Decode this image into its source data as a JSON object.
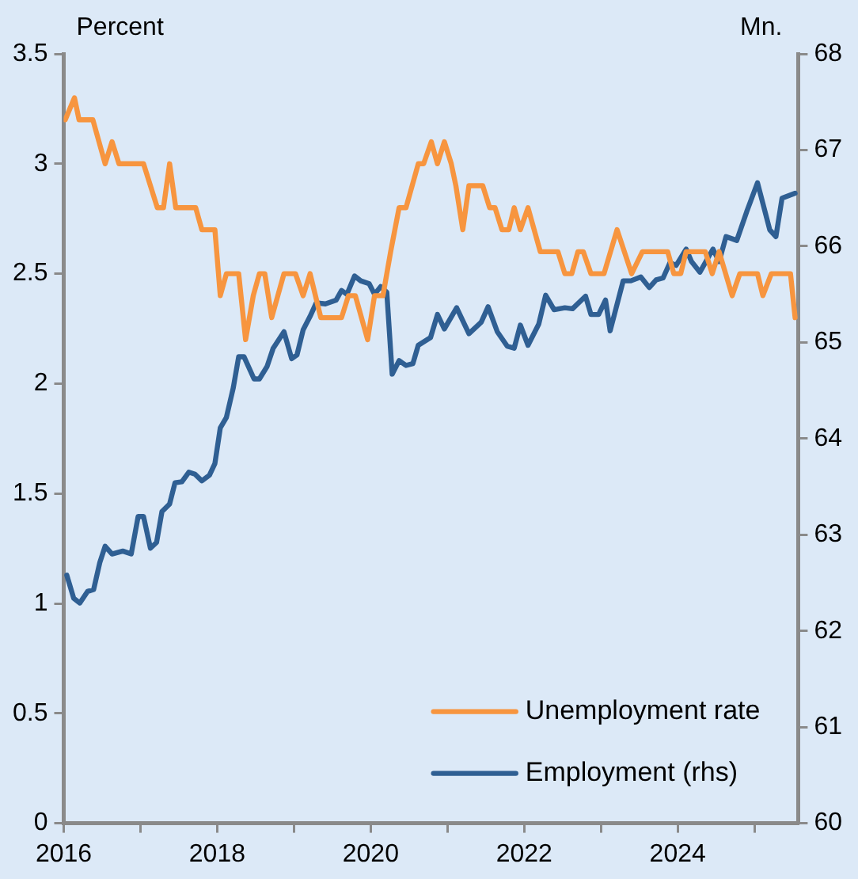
{
  "chart_data": {
    "type": "line",
    "ylabel": "Percent",
    "y2label": "Mn.",
    "legend": "bottom right",
    "xlim": [
      2016,
      2025.57
    ],
    "xticks": [
      2016,
      {
        "value": 2017,
        "label": null
      },
      2018,
      {
        "value": 2019,
        "label": null
      },
      2020,
      {
        "value": 2021,
        "label": null
      },
      2022,
      {
        "value": 2023,
        "label": null
      },
      2024,
      {
        "value": 2025,
        "label": null
      }
    ],
    "ylim": [
      0,
      3.5
    ],
    "yticks": [
      0,
      0.5,
      1,
      1.5,
      2,
      2.5,
      3,
      3.5
    ],
    "y2lim": [
      60,
      68
    ],
    "y2ticks": [
      60,
      61,
      62,
      63,
      64,
      65,
      66,
      67,
      68
    ],
    "series": [
      {
        "name": "Unemployment rate",
        "color": "#f7953f",
        "x": [
          2016.02,
          2016.14,
          2016.2,
          2016.38,
          2016.54,
          2016.63,
          2016.72,
          2017.04,
          2017.22,
          2017.3,
          2017.38,
          2017.46,
          2017.72,
          2017.8,
          2017.97,
          2018.04,
          2018.12,
          2018.28,
          2018.37,
          2018.47,
          2018.55,
          2018.62,
          2018.71,
          2018.87,
          2019.02,
          2019.12,
          2019.21,
          2019.35,
          2019.62,
          2019.71,
          2019.8,
          2019.96,
          2020.05,
          2020.16,
          2020.26,
          2020.37,
          2020.46,
          2020.62,
          2020.69,
          2020.79,
          2020.87,
          2020.96,
          2021.05,
          2021.11,
          2021.2,
          2021.28,
          2021.46,
          2021.55,
          2021.62,
          2021.71,
          2021.8,
          2021.87,
          2021.95,
          2022.05,
          2022.21,
          2022.44,
          2022.53,
          2022.62,
          2022.7,
          2022.77,
          2022.87,
          2023.04,
          2023.21,
          2023.4,
          2023.54,
          2023.87,
          2023.95,
          2024.04,
          2024.11,
          2024.36,
          2024.45,
          2024.54,
          2024.71,
          2024.81,
          2025.04,
          2025.11,
          2025.22,
          2025.47,
          2025.53
        ],
        "values": [
          3.2,
          3.3,
          3.2,
          3.2,
          3.0,
          3.1,
          3.0,
          3.0,
          2.8,
          2.8,
          3.0,
          2.8,
          2.8,
          2.7,
          2.7,
          2.4,
          2.5,
          2.5,
          2.2,
          2.4,
          2.5,
          2.5,
          2.3,
          2.5,
          2.5,
          2.4,
          2.5,
          2.3,
          2.3,
          2.4,
          2.4,
          2.2,
          2.4,
          2.4,
          2.6,
          2.8,
          2.8,
          3.0,
          3.0,
          3.1,
          3.0,
          3.1,
          3.0,
          2.9,
          2.7,
          2.9,
          2.9,
          2.8,
          2.8,
          2.7,
          2.7,
          2.8,
          2.7,
          2.8,
          2.6,
          2.6,
          2.5,
          2.5,
          2.6,
          2.6,
          2.5,
          2.5,
          2.7,
          2.5,
          2.6,
          2.6,
          2.5,
          2.5,
          2.6,
          2.6,
          2.5,
          2.6,
          2.4,
          2.5,
          2.5,
          2.4,
          2.5,
          2.5,
          2.3
        ]
      },
      {
        "name": "Employment (rhs)",
        "color": "#2f5f93",
        "axis": "y2",
        "x": [
          2016.04,
          2016.13,
          2016.21,
          2016.31,
          2016.39,
          2016.47,
          2016.54,
          2016.63,
          2016.77,
          2016.88,
          2016.97,
          2017.04,
          2017.13,
          2017.21,
          2017.28,
          2017.38,
          2017.45,
          2017.54,
          2017.63,
          2017.71,
          2017.8,
          2017.9,
          2017.97,
          2018.04,
          2018.12,
          2018.21,
          2018.28,
          2018.35,
          2018.48,
          2018.55,
          2018.65,
          2018.73,
          2018.87,
          2018.97,
          2019.04,
          2019.12,
          2019.21,
          2019.29,
          2019.41,
          2019.55,
          2019.62,
          2019.69,
          2019.79,
          2019.87,
          2019.98,
          2020.05,
          2020.13,
          2020.21,
          2020.28,
          2020.37,
          2020.46,
          2020.55,
          2020.62,
          2020.78,
          2020.87,
          2020.96,
          2021.12,
          2021.28,
          2021.44,
          2021.53,
          2021.65,
          2021.78,
          2021.87,
          2021.95,
          2022.05,
          2022.19,
          2022.28,
          2022.39,
          2022.53,
          2022.63,
          2022.8,
          2022.87,
          2022.97,
          2023.06,
          2023.12,
          2023.29,
          2023.39,
          2023.52,
          2023.63,
          2023.72,
          2023.81,
          2023.9,
          2023.98,
          2024.11,
          2024.18,
          2024.29,
          2024.46,
          2024.54,
          2024.63,
          2024.77,
          2024.9,
          2025.04,
          2025.2,
          2025.28,
          2025.36,
          2025.53
        ],
        "values": [
          62.58,
          62.34,
          62.29,
          62.41,
          62.43,
          62.71,
          62.88,
          62.8,
          62.83,
          62.8,
          63.19,
          63.19,
          62.86,
          62.92,
          63.24,
          63.32,
          63.54,
          63.55,
          63.65,
          63.63,
          63.56,
          63.62,
          63.74,
          64.11,
          64.22,
          64.53,
          64.85,
          64.85,
          64.62,
          64.62,
          64.75,
          64.94,
          65.11,
          64.83,
          64.87,
          65.13,
          65.27,
          65.41,
          65.4,
          65.44,
          65.54,
          65.5,
          65.69,
          65.64,
          65.61,
          65.5,
          65.58,
          65.52,
          64.67,
          64.81,
          64.76,
          64.78,
          64.97,
          65.05,
          65.29,
          65.14,
          65.36,
          65.09,
          65.21,
          65.37,
          65.11,
          64.96,
          64.94,
          65.18,
          64.97,
          65.19,
          65.49,
          65.34,
          65.36,
          65.35,
          65.48,
          65.29,
          65.29,
          65.44,
          65.12,
          65.64,
          65.64,
          65.68,
          65.57,
          65.65,
          65.67,
          65.83,
          65.8,
          65.97,
          65.84,
          65.73,
          65.97,
          65.84,
          66.1,
          66.06,
          66.36,
          66.66,
          66.17,
          66.1,
          66.5,
          66.55
        ]
      }
    ]
  }
}
